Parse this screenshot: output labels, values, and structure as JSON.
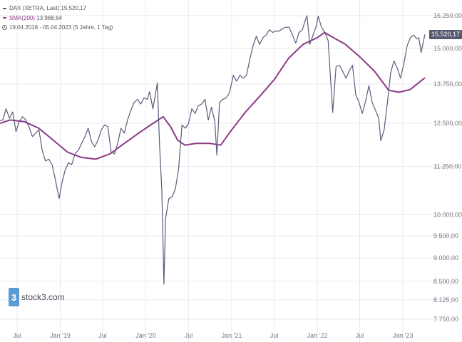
{
  "legend": {
    "dax_label": "DAX (XETRA, Last)",
    "dax_value": "15.520,17",
    "sma_label": "SMA(200)",
    "sma_value": "13.968,64",
    "range": "19.04.2018 - 05.04.2023",
    "interval": "(5 Jahre, 1 Tag)"
  },
  "logo_text": "stock3.com",
  "last_price_badge": "15.520,17",
  "colors": {
    "dax": "#5c5a7a",
    "sma": "#8b3a86",
    "grid": "#e9eaef",
    "badge": "#555a70",
    "logo": "#5b9bd5"
  },
  "chart_data": {
    "type": "line",
    "y_scale": "log",
    "ylim": [
      7750,
      16250
    ],
    "x_range": [
      "2018-04-19",
      "2023-04-05"
    ],
    "y_ticks": [
      {
        "value": 16250,
        "label": "16.250,00"
      },
      {
        "value": 15000,
        "label": "15.000,00"
      },
      {
        "value": 13750,
        "label": "13.750,00"
      },
      {
        "value": 12500,
        "label": "12.500,00"
      },
      {
        "value": 11250,
        "label": "11.250,00"
      },
      {
        "value": 10000,
        "label": "10.000,00"
      },
      {
        "value": 9500,
        "label": "9.500,00"
      },
      {
        "value": 9000,
        "label": "9.000,00"
      },
      {
        "value": 8500,
        "label": "8.500,00"
      },
      {
        "value": 8125,
        "label": "8.125,00"
      },
      {
        "value": 7750,
        "label": "7.750,00"
      }
    ],
    "x_ticks": [
      {
        "date": "2018-07-01",
        "label": "Jul"
      },
      {
        "date": "2019-01-01",
        "label": "Jan '19"
      },
      {
        "date": "2019-07-01",
        "label": "Jul"
      },
      {
        "date": "2020-01-01",
        "label": "Jan '20"
      },
      {
        "date": "2020-07-01",
        "label": "Jul"
      },
      {
        "date": "2021-01-01",
        "label": "Jan '21"
      },
      {
        "date": "2021-07-01",
        "label": "Jul"
      },
      {
        "date": "2022-01-01",
        "label": "Jan '22"
      },
      {
        "date": "2022-07-01",
        "label": "Jul"
      },
      {
        "date": "2023-01-01",
        "label": "Jan '23"
      }
    ],
    "series": [
      {
        "name": "DAX (XETRA, Last)",
        "points": [
          [
            "2018-04-19",
            12580
          ],
          [
            "2018-05-01",
            12600
          ],
          [
            "2018-05-15",
            12950
          ],
          [
            "2018-05-29",
            12650
          ],
          [
            "2018-06-12",
            12850
          ],
          [
            "2018-06-26",
            12250
          ],
          [
            "2018-07-10",
            12550
          ],
          [
            "2018-07-24",
            12700
          ],
          [
            "2018-08-07",
            12600
          ],
          [
            "2018-08-21",
            12380
          ],
          [
            "2018-09-04",
            12100
          ],
          [
            "2018-09-18",
            12200
          ],
          [
            "2018-10-02",
            12300
          ],
          [
            "2018-10-16",
            11700
          ],
          [
            "2018-10-30",
            11400
          ],
          [
            "2018-11-13",
            11450
          ],
          [
            "2018-11-27",
            11300
          ],
          [
            "2018-12-11",
            10900
          ],
          [
            "2018-12-27",
            10400
          ],
          [
            "2019-01-08",
            10800
          ],
          [
            "2019-01-22",
            11150
          ],
          [
            "2019-02-05",
            11350
          ],
          [
            "2019-02-19",
            11300
          ],
          [
            "2019-03-05",
            11600
          ],
          [
            "2019-03-19",
            11700
          ],
          [
            "2019-04-02",
            11900
          ],
          [
            "2019-04-16",
            12100
          ],
          [
            "2019-04-30",
            12350
          ],
          [
            "2019-05-14",
            11950
          ],
          [
            "2019-05-28",
            11800
          ],
          [
            "2019-06-11",
            12000
          ],
          [
            "2019-06-25",
            12300
          ],
          [
            "2019-07-09",
            12450
          ],
          [
            "2019-07-23",
            12400
          ],
          [
            "2019-08-06",
            11650
          ],
          [
            "2019-08-20",
            11600
          ],
          [
            "2019-09-03",
            11900
          ],
          [
            "2019-09-17",
            12350
          ],
          [
            "2019-10-01",
            12200
          ],
          [
            "2019-10-15",
            12600
          ],
          [
            "2019-10-29",
            12900
          ],
          [
            "2019-11-12",
            13150
          ],
          [
            "2019-11-26",
            13250
          ],
          [
            "2019-12-10",
            13100
          ],
          [
            "2019-12-24",
            13300
          ],
          [
            "2020-01-07",
            13250
          ],
          [
            "2020-01-17",
            13500
          ],
          [
            "2020-01-31",
            12950
          ],
          [
            "2020-02-19",
            13790
          ],
          [
            "2020-02-28",
            11900
          ],
          [
            "2020-03-09",
            10600
          ],
          [
            "2020-03-18",
            8440
          ],
          [
            "2020-03-25",
            9900
          ],
          [
            "2020-04-08",
            10400
          ],
          [
            "2020-04-22",
            10450
          ],
          [
            "2020-05-06",
            10650
          ],
          [
            "2020-05-20",
            11200
          ],
          [
            "2020-06-03",
            12450
          ],
          [
            "2020-06-17",
            12350
          ],
          [
            "2020-07-01",
            12500
          ],
          [
            "2020-07-15",
            12950
          ],
          [
            "2020-07-29",
            12800
          ],
          [
            "2020-08-12",
            13050
          ],
          [
            "2020-08-26",
            13100
          ],
          [
            "2020-09-09",
            13250
          ],
          [
            "2020-09-23",
            12600
          ],
          [
            "2020-10-07",
            13000
          ],
          [
            "2020-10-21",
            12550
          ],
          [
            "2020-10-30",
            11560
          ],
          [
            "2020-11-10",
            13150
          ],
          [
            "2020-11-24",
            13250
          ],
          [
            "2020-12-08",
            13300
          ],
          [
            "2020-12-22",
            13450
          ],
          [
            "2021-01-08",
            14050
          ],
          [
            "2021-01-22",
            13850
          ],
          [
            "2021-02-05",
            14050
          ],
          [
            "2021-02-19",
            13950
          ],
          [
            "2021-03-05",
            14050
          ],
          [
            "2021-03-19",
            14600
          ],
          [
            "2021-04-02",
            15100
          ],
          [
            "2021-04-16",
            15450
          ],
          [
            "2021-04-30",
            15150
          ],
          [
            "2021-05-14",
            15400
          ],
          [
            "2021-05-28",
            15500
          ],
          [
            "2021-06-11",
            15700
          ],
          [
            "2021-06-25",
            15600
          ],
          [
            "2021-07-09",
            15650
          ],
          [
            "2021-07-23",
            15650
          ],
          [
            "2021-08-06",
            15750
          ],
          [
            "2021-08-20",
            15800
          ],
          [
            "2021-09-03",
            15800
          ],
          [
            "2021-09-17",
            15500
          ],
          [
            "2021-10-01",
            15200
          ],
          [
            "2021-10-15",
            15600
          ],
          [
            "2021-10-29",
            15700
          ],
          [
            "2021-11-12",
            16100
          ],
          [
            "2021-11-18",
            16250
          ],
          [
            "2021-11-30",
            15150
          ],
          [
            "2021-12-14",
            15500
          ],
          [
            "2021-12-28",
            15850
          ],
          [
            "2022-01-05",
            16230
          ],
          [
            "2022-01-19",
            15800
          ],
          [
            "2022-02-02",
            15600
          ],
          [
            "2022-02-16",
            15300
          ],
          [
            "2022-03-08",
            12830
          ],
          [
            "2022-03-22",
            14350
          ],
          [
            "2022-04-05",
            14400
          ],
          [
            "2022-04-19",
            14200
          ],
          [
            "2022-05-03",
            13950
          ],
          [
            "2022-05-17",
            14200
          ],
          [
            "2022-05-31",
            14400
          ],
          [
            "2022-06-14",
            13400
          ],
          [
            "2022-06-28",
            13150
          ],
          [
            "2022-07-12",
            12800
          ],
          [
            "2022-07-26",
            13200
          ],
          [
            "2022-08-09",
            13700
          ],
          [
            "2022-08-23",
            13150
          ],
          [
            "2022-09-06",
            12900
          ],
          [
            "2022-09-20",
            12650
          ],
          [
            "2022-09-29",
            11980
          ],
          [
            "2022-10-13",
            12300
          ],
          [
            "2022-10-27",
            13150
          ],
          [
            "2022-11-10",
            14150
          ],
          [
            "2022-11-24",
            14550
          ],
          [
            "2022-12-08",
            14300
          ],
          [
            "2022-12-22",
            13950
          ],
          [
            "2023-01-05",
            14450
          ],
          [
            "2023-01-19",
            15100
          ],
          [
            "2023-02-02",
            15400
          ],
          [
            "2023-02-16",
            15500
          ],
          [
            "2023-03-02",
            15350
          ],
          [
            "2023-03-10",
            15400
          ],
          [
            "2023-03-20",
            14850
          ],
          [
            "2023-03-27",
            15150
          ],
          [
            "2023-04-05",
            15520
          ]
        ]
      },
      {
        "name": "SMA(200)",
        "points": [
          [
            "2018-04-19",
            12500
          ],
          [
            "2018-06-01",
            12600
          ],
          [
            "2018-08-01",
            12550
          ],
          [
            "2018-10-01",
            12350
          ],
          [
            "2018-12-01",
            12000
          ],
          [
            "2019-02-01",
            11650
          ],
          [
            "2019-04-01",
            11500
          ],
          [
            "2019-06-01",
            11450
          ],
          [
            "2019-08-01",
            11600
          ],
          [
            "2019-10-01",
            11900
          ],
          [
            "2019-12-01",
            12200
          ],
          [
            "2020-02-01",
            12500
          ],
          [
            "2020-03-15",
            12700
          ],
          [
            "2020-04-15",
            12400
          ],
          [
            "2020-05-15",
            12000
          ],
          [
            "2020-06-15",
            11850
          ],
          [
            "2020-08-01",
            11900
          ],
          [
            "2020-10-01",
            11900
          ],
          [
            "2020-11-15",
            11850
          ],
          [
            "2021-01-01",
            12300
          ],
          [
            "2021-03-01",
            12850
          ],
          [
            "2021-05-01",
            13350
          ],
          [
            "2021-07-01",
            13900
          ],
          [
            "2021-09-01",
            14650
          ],
          [
            "2021-11-01",
            15150
          ],
          [
            "2022-01-01",
            15400
          ],
          [
            "2022-02-01",
            15600
          ],
          [
            "2022-03-01",
            15450
          ],
          [
            "2022-05-01",
            15150
          ],
          [
            "2022-07-01",
            14700
          ],
          [
            "2022-09-01",
            14200
          ],
          [
            "2022-11-01",
            13550
          ],
          [
            "2022-12-15",
            13480
          ],
          [
            "2023-02-01",
            13570
          ],
          [
            "2023-04-05",
            13968
          ]
        ]
      }
    ]
  }
}
